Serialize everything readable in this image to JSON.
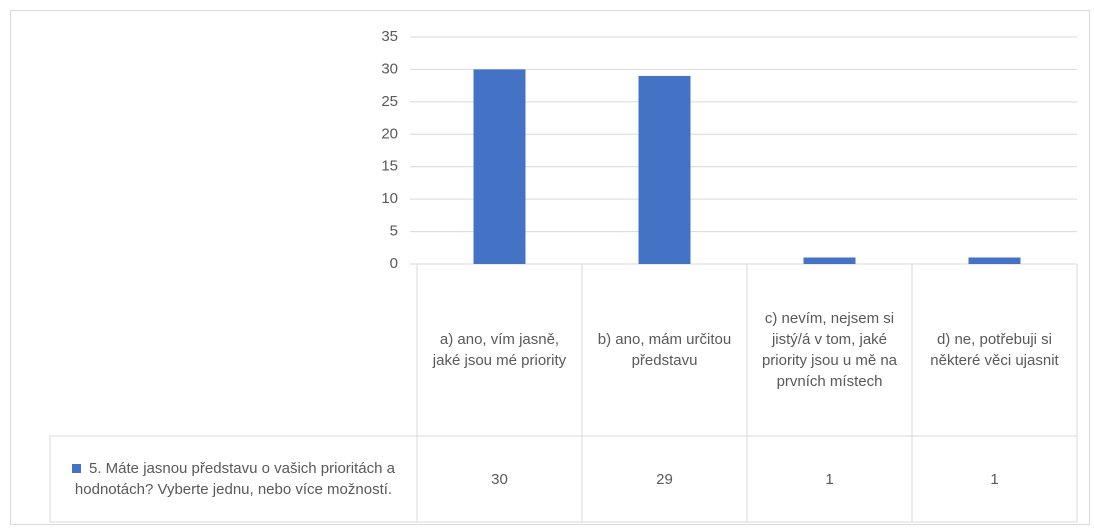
{
  "chart_data": {
    "type": "bar",
    "categories": [
      "a) ano, vím jasně, jaké jsou mé priority",
      "b) ano, mám určitou představu",
      "c) nevím, nejsem si jistý/á v tom, jaké priority jsou u mě na prvních místech",
      "d) ne, potřebuji si některé věci ujasnit"
    ],
    "series": [
      {
        "name": "5. Máte jasnou představu o vašich prioritách a hodnotách? Vyberte jednu, nebo více možností.",
        "color": "#4472c4",
        "values": [
          30,
          29,
          1,
          1
        ]
      }
    ],
    "ylim": [
      0,
      35
    ],
    "yticks": [
      0,
      5,
      10,
      15,
      20,
      25,
      30,
      35
    ],
    "grid": true,
    "data_table": true
  }
}
